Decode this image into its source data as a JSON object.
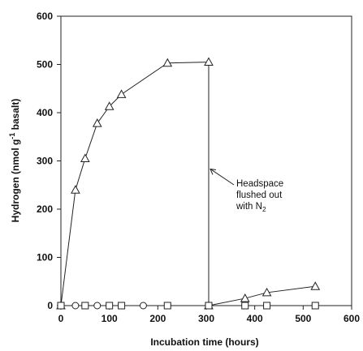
{
  "chart_data": {
    "type": "line",
    "title": "",
    "xlabel": "Incubation time (hours)",
    "ylabel": "Hydrogen (nmol g",
    "ylabel_sup": "-1",
    "ylabel_tail": " basalt)",
    "xlim": [
      0,
      600
    ],
    "ylim": [
      0,
      600
    ],
    "xticks": [
      0,
      100,
      200,
      300,
      400,
      500,
      600
    ],
    "yticks": [
      0,
      100,
      200,
      300,
      400,
      500,
      600
    ],
    "grid": false,
    "legend": "none",
    "series": [
      {
        "marker": "triangle",
        "segments": [
          {
            "x": [
              0,
              30,
              50,
              75,
              100,
              125,
              220,
              305
            ],
            "y": [
              0,
              240,
              305,
              378,
              413,
              438,
              503,
              505
            ]
          },
          {
            "x": [
              305,
              380,
              425,
              525
            ],
            "y": [
              0,
              15,
              27,
              40
            ]
          }
        ]
      },
      {
        "marker": "circle",
        "segments": [
          {
            "x": [
              0,
              30,
              50,
              75,
              100,
              125,
              170,
              220,
              305
            ],
            "y": [
              0,
              0,
              0,
              0,
              0,
              0,
              0,
              0,
              0
            ]
          },
          {
            "x": [
              305,
              380,
              425,
              525
            ],
            "y": [
              0,
              0,
              0,
              0
            ]
          }
        ]
      },
      {
        "marker": "square",
        "segments": [
          {
            "x": [
              0,
              50,
              100,
              125,
              220,
              305
            ],
            "y": [
              0,
              0,
              0,
              0,
              0,
              0
            ]
          },
          {
            "x": [
              305,
              380,
              425,
              525
            ],
            "y": [
              0,
              0,
              0,
              0
            ]
          }
        ]
      }
    ],
    "vline_x": 305,
    "annotation": {
      "lines": [
        "Headspace",
        "flushed out",
        "with N"
      ],
      "subscript": "2",
      "arrow_to": [
        305,
        290
      ]
    }
  }
}
